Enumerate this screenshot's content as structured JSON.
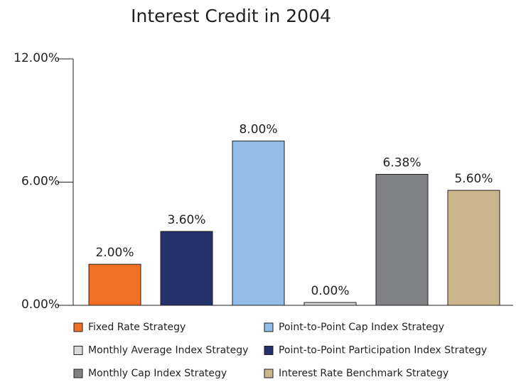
{
  "chart_data": {
    "type": "bar",
    "title": "Interest Credit in 2004",
    "series": [
      {
        "name": "Fixed Rate Strategy",
        "color": "#f07126",
        "values": [
          2.0
        ],
        "value_labels": [
          "2.00%"
        ]
      },
      {
        "name": "Point-to-Point Participation Index Strategy",
        "color": "#24316b",
        "values": [
          3.6
        ],
        "value_labels": [
          "3.60%"
        ]
      },
      {
        "name": "Point-to-Point Cap Index Strategy",
        "color": "#92bde6",
        "values": [
          8.0
        ],
        "value_labels": [
          "8.00%"
        ]
      },
      {
        "name": "Monthly Average Index Strategy",
        "color": "#d9d9d9",
        "values": [
          0.0
        ],
        "value_labels": [
          "0.00%"
        ]
      },
      {
        "name": "Monthly Cap Index Strategy",
        "color": "#808184",
        "values": [
          6.38
        ],
        "value_labels": [
          "6.38%"
        ]
      },
      {
        "name": "Interest Rate Benchmark Strategy",
        "color": "#cbb68c",
        "values": [
          5.6
        ],
        "value_labels": [
          "5.60%"
        ]
      }
    ],
    "ylim": [
      0,
      12
    ],
    "yticks": [
      {
        "value": 0,
        "label": "0.00%"
      },
      {
        "value": 6,
        "label": "6.00%"
      },
      {
        "value": 12,
        "label": "12.00%"
      }
    ],
    "grid": false
  }
}
